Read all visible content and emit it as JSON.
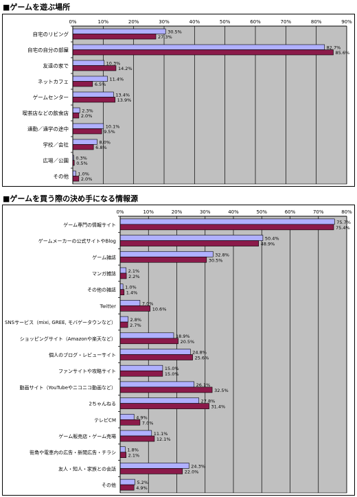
{
  "chart_data": [
    {
      "type": "bar",
      "title": "■ゲームを遊ぶ場所",
      "orientation": "horizontal",
      "categories": [
        "自宅のリビング",
        "自宅の自分の部屋",
        "友達の家で",
        "ネットカフェ",
        "ゲームセンター",
        "喫茶店などの飲食店",
        "通勤／通学の途中",
        "学校／会社",
        "広場／公園",
        "その他"
      ],
      "series": [
        {
          "values": [
            30.5,
            82.7,
            10.3,
            11.4,
            13.4,
            2.3,
            10.1,
            8.0,
            0.3,
            1.0
          ]
        },
        {
          "values": [
            27.3,
            85.6,
            14.2,
            6.5,
            13.9,
            2.0,
            9.5,
            6.8,
            0.5,
            2.0
          ]
        }
      ],
      "value_labels": [
        [
          "30.5%",
          "82.7%",
          "10.3%",
          "11.4%",
          "13.4%",
          "2.3%",
          "10.1%",
          "8.0%",
          "0.3%",
          "1.0%"
        ],
        [
          "27.3%",
          "85.6%",
          "14.2%",
          "6.5%",
          "13.9%",
          "2.0%",
          "9.5%",
          "6.8%",
          "0.5%",
          "2.0%"
        ]
      ],
      "ticks": [
        "0%",
        "10%",
        "20%",
        "30%",
        "40%",
        "50%",
        "60%",
        "70%",
        "80%",
        "90%"
      ],
      "xlim": [
        0,
        90
      ],
      "xlabel": "",
      "ylabel": "",
      "grid": true
    },
    {
      "type": "bar",
      "title": "■ゲームを買う際の決め手になる情報源",
      "orientation": "horizontal",
      "categories": [
        "ゲーム専門の情報サイト",
        "ゲームメーカーの公式サイトやBlog",
        "ゲーム雑誌",
        "マンガ雑誌",
        "その他の雑誌",
        "Twitter",
        "SNSサービス（mixi, GREE, モバゲータウンなど）",
        "ショッピングサイト（Amazonや楽天など）",
        "個人のブログ・レビューサイト",
        "ファンサイトや攻略サイト",
        "動画サイト（YouTubeやニコニコ動画など）",
        "2ちゃんねる",
        "テレビCM",
        "ゲーム販売店・ゲーム売場",
        "街角や電車内の広告・新聞広告・チラシ",
        "友人・知人・家族との会話",
        "その他"
      ],
      "series": [
        {
          "values": [
            75.7,
            50.4,
            32.8,
            2.1,
            1.0,
            7.0,
            2.8,
            18.9,
            24.8,
            15.0,
            26.1,
            27.8,
            4.9,
            11.1,
            1.8,
            24.3,
            5.2
          ]
        },
        {
          "values": [
            75.4,
            48.9,
            30.5,
            2.2,
            1.4,
            10.6,
            2.7,
            20.5,
            25.6,
            15.0,
            32.5,
            31.4,
            7.0,
            12.1,
            2.1,
            22.0,
            4.9
          ]
        }
      ],
      "value_labels": [
        [
          "75.7%",
          "50.4%",
          "32.8%",
          "2.1%",
          "1.0%",
          "7.0%",
          "2.8%",
          "18.9%",
          "24.8%",
          "15.0%",
          "26.1%",
          "27.8%",
          "4.9%",
          "11.1%",
          "1.8%",
          "24.3%",
          "5.2%"
        ],
        [
          "75.4%",
          "48.9%",
          "30.5%",
          "2.2%",
          "1.4%",
          "10.6%",
          "2.7%",
          "20.5%",
          "25.6%",
          "15.0%",
          "32.5%",
          "31.4%",
          "7.0%",
          "12.1%",
          "2.1%",
          "22.0%",
          "4.9%"
        ]
      ],
      "ticks": [
        "0%",
        "10%",
        "20%",
        "30%",
        "40%",
        "50%",
        "60%",
        "70%",
        "80%"
      ],
      "xlim": [
        0,
        80
      ],
      "xlabel": "",
      "ylabel": "",
      "grid": true
    }
  ],
  "colors": {
    "series_1": "#b0b0ff",
    "series_2": "#8b1a4a",
    "plot_background": "#c0c0c0",
    "gridline": "#000000"
  }
}
